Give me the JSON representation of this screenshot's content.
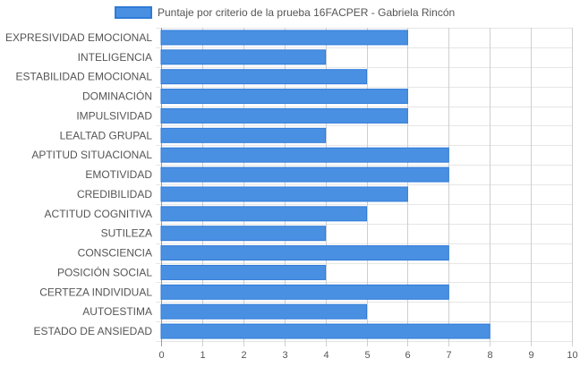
{
  "chart_data": {
    "type": "bar",
    "orientation": "horizontal",
    "categories": [
      "EXPRESIVIDAD EMOCIONAL",
      "INTELIGENCIA",
      "ESTABILIDAD EMOCIONAL",
      "DOMINACIÓN",
      "IMPULSIVIDAD",
      "LEALTAD GRUPAL",
      "APTITUD SITUACIONAL",
      "EMOTIVIDAD",
      "CREDIBILIDAD",
      "ACTITUD COGNITIVA",
      "SUTILEZA",
      "CONSCIENCIA",
      "POSICIÓN SOCIAL",
      "CERTEZA INDIVIDUAL",
      "AUTOESTIMA",
      "ESTADO DE ANSIEDAD"
    ],
    "series": [
      {
        "name": "Puntaje por criterio de la prueba 16FACPER - Gabriela Rincón",
        "values": [
          6,
          4,
          5,
          6,
          6,
          4,
          7,
          7,
          6,
          5,
          4,
          7,
          4,
          7,
          5,
          8
        ],
        "color": "#4a90e2",
        "border_color": "#2f7bd8"
      }
    ],
    "x_ticks": [
      "0",
      "1",
      "2",
      "3",
      "4",
      "5",
      "6",
      "7",
      "8",
      "9",
      "10"
    ],
    "xlim": [
      0,
      10
    ],
    "grid": true,
    "legend": "top-center"
  }
}
